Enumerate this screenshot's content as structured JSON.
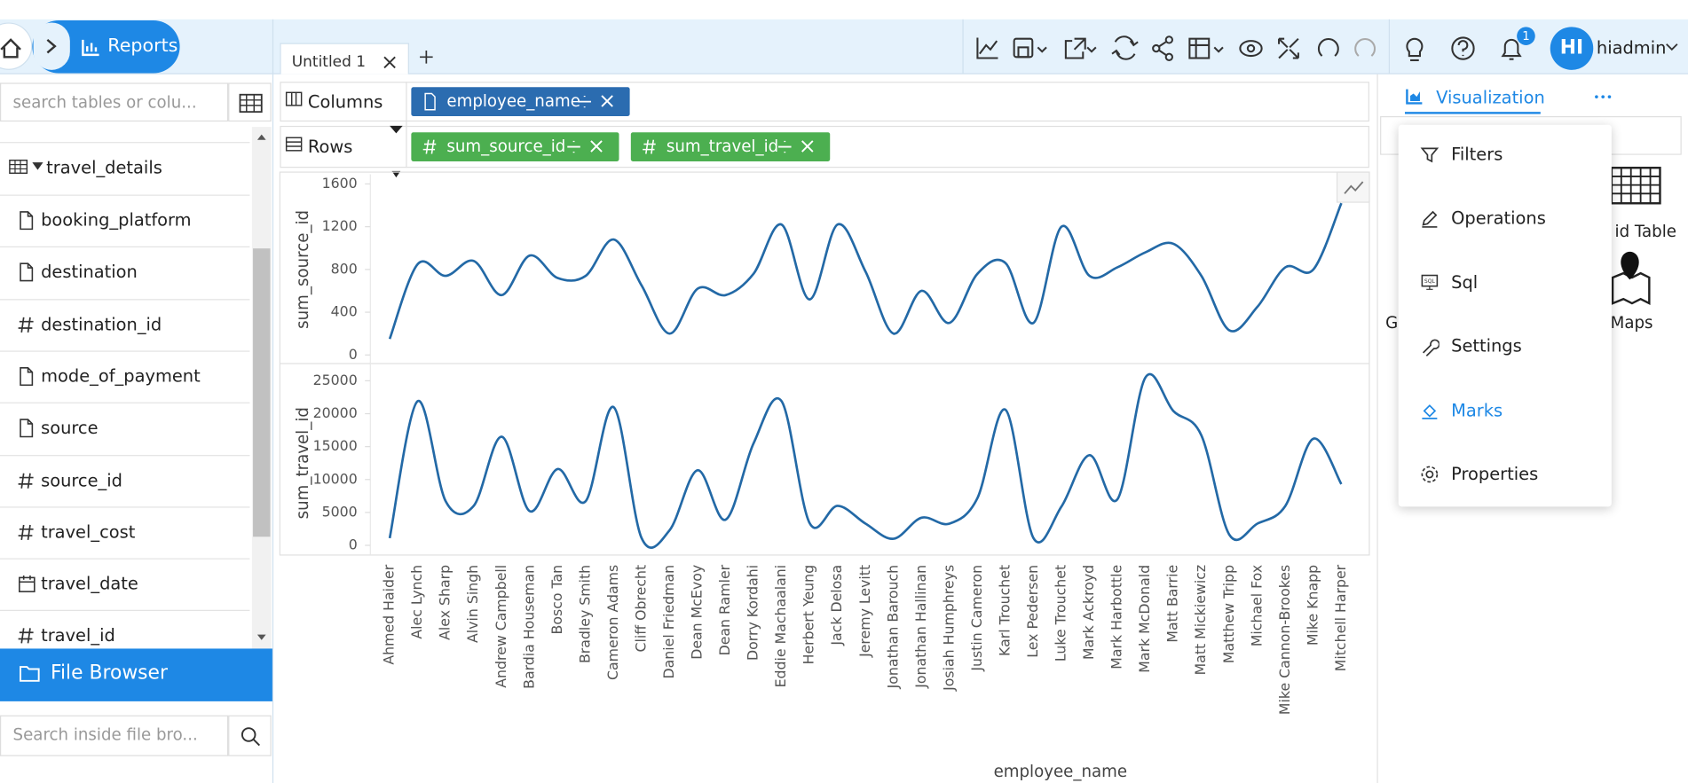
{
  "header": {
    "breadcrumb": "Reports",
    "tab": "Untitled 1",
    "notifications": 1,
    "avatar": "HI",
    "user": "hiadmin"
  },
  "sidebar": {
    "search_placeholder": "search tables or colu...",
    "table": "travel_details",
    "fields": [
      "booking_platform",
      "destination",
      "destination_id",
      "mode_of_payment",
      "source",
      "source_id",
      "travel_cost",
      "travel_date",
      "travel_id"
    ],
    "file_browser": "File Browser",
    "file_search_placeholder": "Search inside file bro..."
  },
  "shelves": {
    "columns_label": "Columns",
    "rows_label": "Rows",
    "columns": [
      "employee_name"
    ],
    "rows": [
      "sum_source_id",
      "sum_travel_id"
    ]
  },
  "panel": {
    "tab": "Visualization",
    "menu": [
      "Filters",
      "Operations",
      "Sql",
      "Settings",
      "Marks",
      "Properties"
    ],
    "active": "Marks",
    "behind": [
      "id Table",
      "Maps",
      "G"
    ]
  },
  "chart_data": {
    "type": "line",
    "color": "#2369a6",
    "x_label": "employee_name",
    "categories": [
      "Ahmed Haider",
      "Alec Lynch",
      "Alex Sharp",
      "Alvin Singh",
      "Andrew Campbell",
      "Bardia Houseman",
      "Bosco Tan",
      "Bradley Smith",
      "Cameron Adams",
      "Cliff Obrecht",
      "Daniel Friedman",
      "Dean McEvoy",
      "Dean Ramler",
      "Dorry Kordahi",
      "Eddie Machaalani",
      "Herbert Yeung",
      "Jack Delosa",
      "Jeremy Levitt",
      "Jonathan Barouch",
      "Jonathan Hallinan",
      "Josiah Humphreys",
      "Justin Cameron",
      "Karl Trouchet",
      "Lex Pedersen",
      "Luke Trouchet",
      "Mark Ackroyd",
      "Mark Harbottle",
      "Mark McDonald",
      "Matt Barrie",
      "Matt Mickiewicz",
      "Matthew Tripp",
      "Michael Fox",
      "Mike Cannon-Brookes",
      "Mike Knapp",
      "Mitchell Harper"
    ],
    "panels": [
      {
        "y_label": "sum_source_id",
        "ylim": [
          0,
          1600
        ],
        "yticks": [
          0,
          400,
          800,
          1200,
          1600
        ],
        "values": [
          150,
          850,
          740,
          880,
          560,
          930,
          720,
          740,
          1080,
          650,
          200,
          620,
          560,
          760,
          1220,
          520,
          1220,
          780,
          200,
          600,
          300,
          760,
          860,
          300,
          1200,
          740,
          820,
          960,
          1040,
          740,
          230,
          450,
          820,
          800,
          1420
        ]
      },
      {
        "y_label": "sum_travel_id",
        "ylim": [
          0,
          25000
        ],
        "yticks": [
          0,
          5000,
          10000,
          15000,
          20000,
          25000
        ],
        "values": [
          1100,
          21900,
          6700,
          6000,
          16500,
          5200,
          11600,
          6700,
          21000,
          1100,
          2300,
          11400,
          3900,
          15500,
          21900,
          3400,
          6000,
          3300,
          1000,
          4200,
          3300,
          7200,
          20600,
          1100,
          5900,
          13700,
          7000,
          25500,
          20400,
          16700,
          1600,
          3300,
          6000,
          16200,
          9300
        ]
      }
    ]
  }
}
